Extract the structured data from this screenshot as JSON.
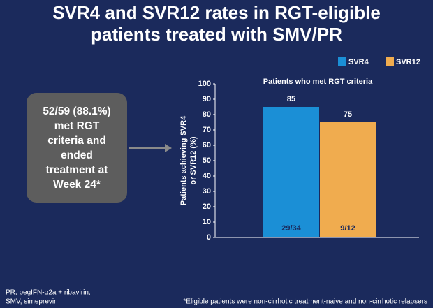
{
  "title_lines": [
    "SVR4 and SVR12 rates in RGT-eligible",
    "patients treated with SMV/PR"
  ],
  "callout_lines": [
    "52/59 (88.1%)",
    "met RGT",
    "criteria and",
    "ended",
    "treatment at",
    "Week 24*"
  ],
  "footnotes": {
    "left": [
      "PR, pegIFN-α2a + ribavirin;",
      "SMV, simeprevir"
    ],
    "right": "*Eligible patients were non-cirrhotic treatment-naive and non-cirrhotic relapsers"
  },
  "chart_data": {
    "type": "bar",
    "title": "Patients who met RGT criteria",
    "ylabel": [
      "Patients achieving SVR4",
      "or SVR12 (%)"
    ],
    "categories": [
      null
    ],
    "series": [
      {
        "name": "SVR4",
        "color": "#1b8fd6",
        "values": [
          85
        ],
        "inner_labels": [
          "29/34"
        ]
      },
      {
        "name": "SVR12",
        "color": "#f0ac4f",
        "values": [
          75
        ],
        "inner_labels": [
          "9/12"
        ]
      }
    ],
    "ylim": [
      0,
      100
    ],
    "yticks": [
      0,
      10,
      20,
      30,
      40,
      50,
      60,
      70,
      80,
      90,
      100
    ],
    "grid": false
  }
}
